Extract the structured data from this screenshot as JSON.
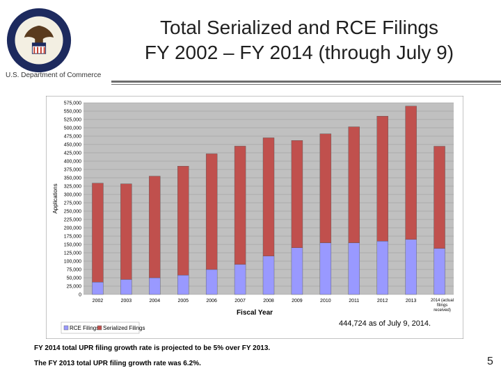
{
  "header": {
    "department": "U.S. Department of Commerce",
    "title_line1": "Total Serialized and RCE Filings",
    "title_line2": "FY 2002 – FY 2014 (through July 9)"
  },
  "chart_data": {
    "type": "bar",
    "stacked": true,
    "categories": [
      "2002",
      "2003",
      "2004",
      "2005",
      "2006",
      "2007",
      "2008",
      "2009",
      "2010",
      "2011",
      "2012",
      "2013",
      "2014 (actual filings received)"
    ],
    "series": [
      {
        "name": "RCE Filings",
        "color": "#9999ff",
        "values": [
          37000,
          45000,
          50000,
          58000,
          75000,
          90000,
          115000,
          140000,
          155000,
          155000,
          160000,
          165000,
          138000
        ]
      },
      {
        "name": "Serialized Filings",
        "color": "#c0504d",
        "values": [
          297000,
          287000,
          305000,
          327000,
          347000,
          355000,
          355000,
          322000,
          327000,
          348000,
          375000,
          400000,
          306724
        ]
      }
    ],
    "ylabel": "Applications",
    "xlabel": "Fiscal Year",
    "ylim": [
      0,
      575000
    ],
    "ytick_step": 25000,
    "legend_position": "bottom-left",
    "annotation": "444,724 as of July 9, 2014."
  },
  "footer": {
    "note1": "FY 2014 total UPR filing growth rate is projected to be 5% over FY 2013.",
    "note2": "The FY 2013 total UPR filing growth rate was 6.2%.",
    "page_number": "5"
  }
}
